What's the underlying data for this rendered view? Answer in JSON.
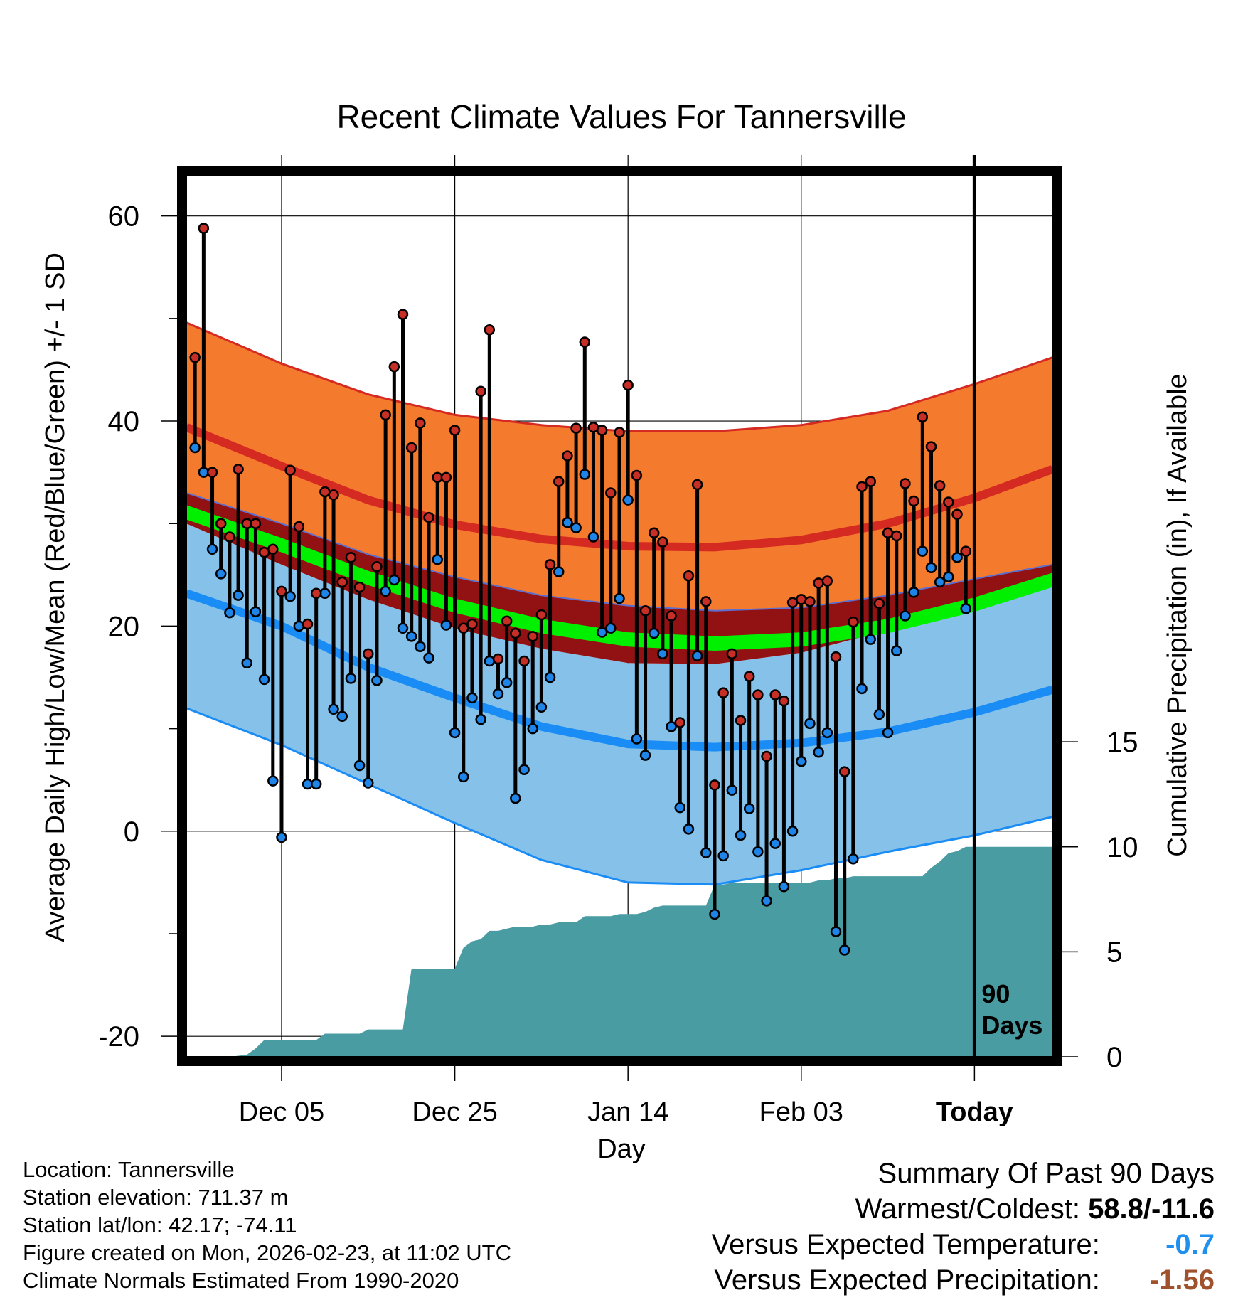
{
  "colors": {
    "high_band": "#f47a2e",
    "high_line": "#d52a22",
    "mean_band": "#921213",
    "mean_line": "#00f000",
    "low_band": "#85c1e8",
    "low_line": "#1a8cf5",
    "precip": "#4a9ca3",
    "high_dot": "#c62e26",
    "low_dot": "#1f84e8",
    "vs_temp": "#1f8ff0",
    "vs_precip": "#a0522d"
  },
  "chart_data": {
    "type": "line",
    "title": "Recent Climate Values For Tannersville",
    "xlabel": "Day",
    "ylabel": "Average Daily High/Low/Mean (Red/Blue/Green) +/- 1 SD",
    "y2label": "Cumulative Precipitation (in), If Available",
    "xlim": [
      -11,
      89
    ],
    "ylim": [
      -22,
      64
    ],
    "y2lim": [
      0,
      42
    ],
    "yticks": [
      {
        "v": -20,
        "label": "-20"
      },
      {
        "v": 0,
        "label": "0"
      },
      {
        "v": 20,
        "label": "20"
      },
      {
        "v": 40,
        "label": "40"
      },
      {
        "v": 60,
        "label": "60"
      }
    ],
    "yminorticks": [
      -10,
      10,
      30,
      50
    ],
    "y2ticks": [
      {
        "v": 0,
        "label": "0"
      },
      {
        "v": 5,
        "label": "5"
      },
      {
        "v": 10,
        "label": "10"
      },
      {
        "v": 15,
        "label": "15"
      }
    ],
    "xticks": [
      {
        "v": 0,
        "label": "Dec 05"
      },
      {
        "v": 20,
        "label": "Dec 25"
      },
      {
        "v": 40,
        "label": "Jan 14"
      },
      {
        "v": 60,
        "label": "Feb 03"
      },
      {
        "v": 80,
        "label": "Today"
      }
    ],
    "today_marker": {
      "x": 80,
      "label": [
        "90",
        "Days"
      ]
    },
    "normals": {
      "x": [
        -11,
        0,
        10,
        20,
        30,
        40,
        50,
        60,
        70,
        80,
        89
      ],
      "high_upper": [
        49.6,
        45.6,
        42.6,
        40.6,
        39.6,
        39.0,
        39.0,
        39.6,
        41.0,
        43.6,
        46.2
      ],
      "high_mean": [
        39.4,
        35.6,
        32.3,
        29.9,
        28.5,
        27.8,
        27.7,
        28.4,
        30.0,
        32.5,
        35.3
      ],
      "high_lower": [
        33.0,
        30.0,
        27.0,
        24.8,
        23.0,
        22.0,
        21.5,
        21.8,
        23.0,
        24.6,
        26.0
      ],
      "mean_upper": [
        31.8,
        28.6,
        25.4,
        22.7,
        20.7,
        19.4,
        19.0,
        19.4,
        20.7,
        22.8,
        25.2
      ],
      "mean_lower": [
        30.4,
        27.2,
        24.0,
        21.3,
        19.3,
        18.0,
        17.6,
        18.0,
        19.3,
        21.4,
        23.8
      ],
      "low_base": [
        30.0,
        26.0,
        22.6,
        19.8,
        17.8,
        16.4,
        16.3,
        17.4,
        19.6,
        22.4,
        24.8
      ],
      "low_mean": [
        23.2,
        20.0,
        16.0,
        13.0,
        10.2,
        8.5,
        8.2,
        8.6,
        9.7,
        11.6,
        13.8
      ],
      "low_lower": [
        12.0,
        8.4,
        4.6,
        0.8,
        -2.8,
        -5.0,
        -5.2,
        -3.8,
        -2.0,
        -0.4,
        1.4
      ]
    },
    "series": [
      {
        "name": "High",
        "x": [
          -10,
          -9,
          -8,
          -7,
          -6,
          -5,
          -4,
          -3,
          -2,
          -1,
          0,
          1,
          2,
          3,
          4,
          5,
          6,
          7,
          8,
          9,
          10,
          11,
          12,
          13,
          14,
          15,
          16,
          17,
          18,
          19,
          20,
          21,
          22,
          23,
          24,
          25,
          26,
          27,
          28,
          29,
          30,
          31,
          32,
          33,
          34,
          35,
          36,
          37,
          38,
          39,
          40,
          41,
          42,
          43,
          44,
          45,
          46,
          47,
          48,
          49,
          50,
          51,
          52,
          53,
          54,
          55,
          56,
          57,
          58,
          59,
          60,
          61,
          62,
          63,
          64,
          65,
          66,
          67,
          68,
          69,
          70,
          71,
          72,
          73,
          74,
          75,
          76,
          77,
          78,
          79
        ],
        "values": [
          46.2,
          58.8,
          35.0,
          30.0,
          28.7,
          35.3,
          30.0,
          30.0,
          27.2,
          27.5,
          23.4,
          35.2,
          29.7,
          20.2,
          23.2,
          33.1,
          32.8,
          24.3,
          26.7,
          23.8,
          17.3,
          25.8,
          40.6,
          45.3,
          50.4,
          37.4,
          39.8,
          30.6,
          34.5,
          34.5,
          39.1,
          19.8,
          20.2,
          42.9,
          48.9,
          16.8,
          20.5,
          19.3,
          16.6,
          19.0,
          21.1,
          26.0,
          34.1,
          36.6,
          39.3,
          47.7,
          39.4,
          39.1,
          33.0,
          38.9,
          43.5,
          34.7,
          21.5,
          29.1,
          28.2,
          21.0,
          10.6,
          24.9,
          33.8,
          22.4,
          4.5,
          13.5,
          17.3,
          10.8,
          15.1,
          13.3,
          7.3,
          13.3,
          12.7,
          22.3,
          22.6,
          22.4,
          24.2,
          24.4,
          17.0,
          5.8,
          20.4,
          33.6,
          34.1,
          22.2,
          29.1,
          28.8,
          33.9,
          32.2,
          40.4,
          37.5,
          33.7,
          32.1,
          30.9,
          27.3
        ]
      },
      {
        "name": "Low",
        "x": [
          -10,
          -9,
          -8,
          -7,
          -6,
          -5,
          -4,
          -3,
          -2,
          -1,
          0,
          1,
          2,
          3,
          4,
          5,
          6,
          7,
          8,
          9,
          10,
          11,
          12,
          13,
          14,
          15,
          16,
          17,
          18,
          19,
          20,
          21,
          22,
          23,
          24,
          25,
          26,
          27,
          28,
          29,
          30,
          31,
          32,
          33,
          34,
          35,
          36,
          37,
          38,
          39,
          40,
          41,
          42,
          43,
          44,
          45,
          46,
          47,
          48,
          49,
          50,
          51,
          52,
          53,
          54,
          55,
          56,
          57,
          58,
          59,
          60,
          61,
          62,
          63,
          64,
          65,
          66,
          67,
          68,
          69,
          70,
          71,
          72,
          73,
          74,
          75,
          76,
          77,
          78,
          79
        ],
        "values": [
          37.4,
          35.0,
          27.5,
          25.1,
          21.3,
          23.0,
          16.4,
          21.4,
          14.8,
          4.9,
          -0.6,
          22.9,
          20.0,
          4.6,
          4.6,
          23.2,
          11.9,
          11.2,
          14.9,
          6.4,
          4.7,
          14.7,
          23.4,
          24.5,
          19.8,
          19.0,
          18.0,
          16.9,
          26.5,
          20.1,
          9.6,
          5.3,
          13.0,
          10.9,
          16.6,
          13.4,
          14.5,
          3.2,
          6.0,
          10.0,
          12.1,
          15.0,
          25.3,
          30.1,
          29.6,
          34.8,
          28.7,
          19.4,
          19.8,
          22.7,
          32.3,
          9.0,
          7.4,
          19.3,
          17.3,
          10.2,
          2.3,
          0.2,
          17.1,
          -2.1,
          -8.1,
          -2.4,
          4.0,
          -0.4,
          2.2,
          -2.0,
          -6.8,
          -1.2,
          -5.4,
          0.0,
          6.8,
          10.5,
          7.7,
          9.6,
          -9.8,
          -11.6,
          -2.7,
          13.9,
          18.7,
          11.4,
          9.6,
          17.6,
          21.0,
          23.3,
          27.3,
          25.7,
          24.3,
          24.8,
          26.7,
          21.7
        ]
      },
      {
        "name": "Cumulative Precipitation",
        "x": [
          -11,
          -6,
          -4,
          -3,
          -2,
          0,
          4,
          5,
          9,
          10,
          14,
          15,
          20,
          21,
          22,
          23,
          24,
          25,
          26,
          27,
          28,
          29,
          30,
          31,
          32,
          33,
          34,
          35,
          36,
          37,
          38,
          39,
          40,
          41,
          42,
          43,
          44,
          45,
          46,
          47,
          48,
          49,
          50,
          51,
          52,
          53,
          54,
          55,
          56,
          57,
          58,
          59,
          60,
          61,
          62,
          63,
          64,
          65,
          66,
          67,
          68,
          69,
          70,
          71,
          72,
          73,
          74,
          75,
          76,
          77,
          78,
          79,
          89
        ],
        "values": [
          0.0,
          0.0,
          0.1,
          0.4,
          0.8,
          0.8,
          0.8,
          1.1,
          1.1,
          1.3,
          1.3,
          4.2,
          4.2,
          5.2,
          5.5,
          5.6,
          6.0,
          6.0,
          6.1,
          6.2,
          6.2,
          6.2,
          6.3,
          6.3,
          6.4,
          6.4,
          6.4,
          6.7,
          6.7,
          6.7,
          6.7,
          6.8,
          6.8,
          6.8,
          6.9,
          7.1,
          7.2,
          7.2,
          7.2,
          7.2,
          7.2,
          7.2,
          8.2,
          8.2,
          8.3,
          8.3,
          8.3,
          8.3,
          8.3,
          8.3,
          8.3,
          8.3,
          8.3,
          8.3,
          8.4,
          8.4,
          8.5,
          8.5,
          8.6,
          8.6,
          8.6,
          8.6,
          8.6,
          8.6,
          8.6,
          8.6,
          8.6,
          9.0,
          9.3,
          9.7,
          9.8,
          10.0,
          10.0
        ]
      }
    ]
  },
  "info": {
    "location": "Location: Tannersville",
    "elevation": "Station elevation: 711.37 m",
    "latlon": "Station lat/lon: 42.17; -74.11",
    "created": "Figure created on Mon, 2026-02-23, at 11:02 UTC",
    "normals": "Climate Normals Estimated From 1990-2020"
  },
  "summary": {
    "title": "Summary Of Past 90 Days",
    "warm_cold_label": "Warmest/Coldest:",
    "warm_cold_value": "58.8/-11.6",
    "vs_temp_label": "Versus Expected Temperature:",
    "vs_temp_value": "-0.7",
    "vs_precip_label": "Versus Expected Precipitation:",
    "vs_precip_value": "-1.56"
  }
}
